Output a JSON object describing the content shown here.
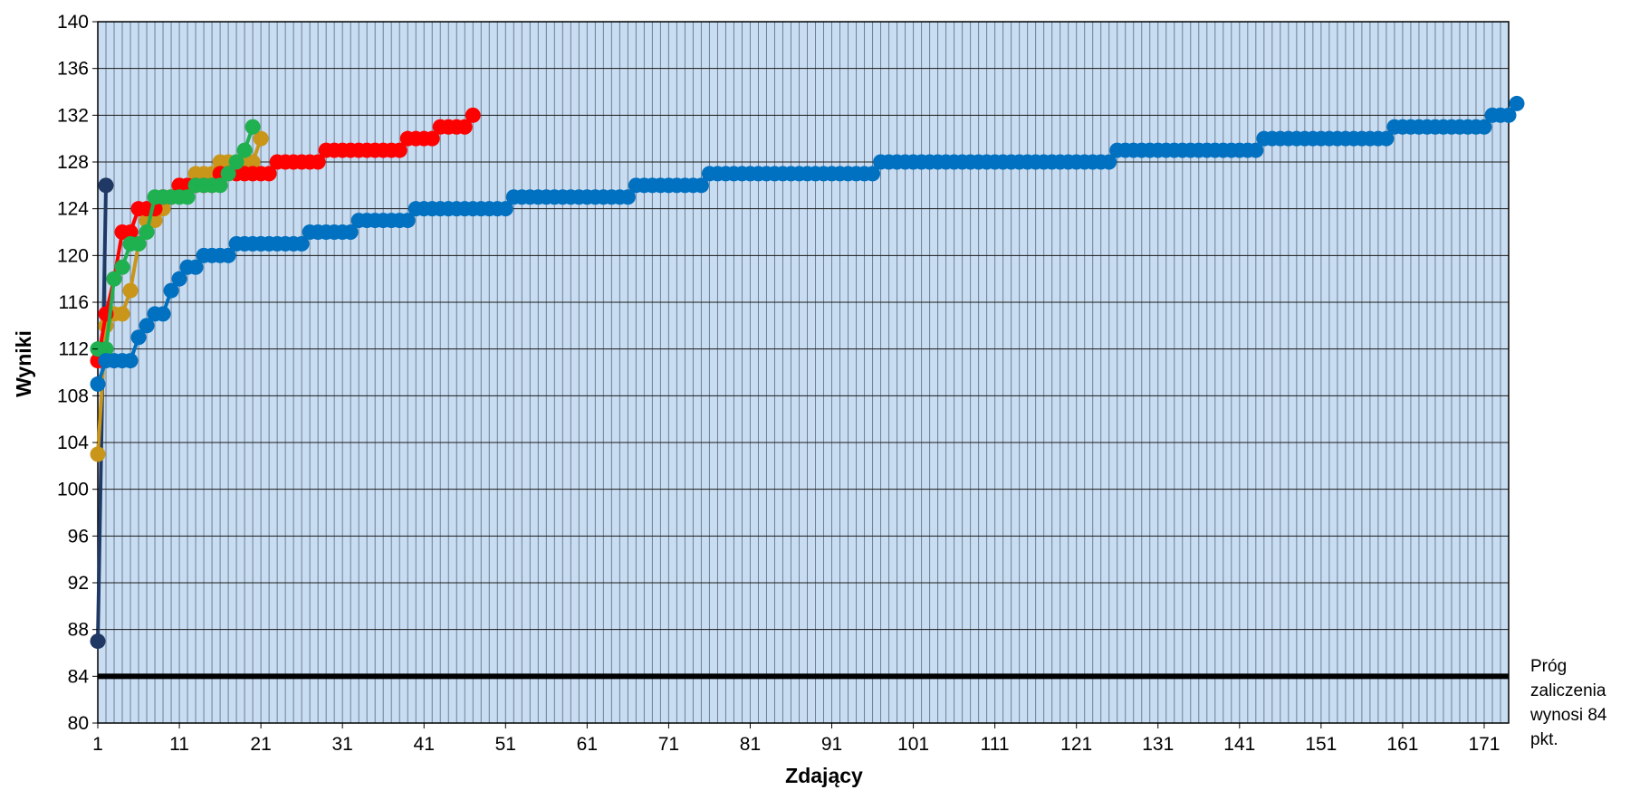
{
  "chart_data": {
    "type": "line",
    "title": "",
    "xlabel": "Zdający",
    "ylabel": "Wyniki",
    "xlim": [
      1,
      174
    ],
    "ylim": [
      80,
      140
    ],
    "yticks": [
      80,
      84,
      88,
      92,
      96,
      100,
      104,
      108,
      112,
      116,
      120,
      124,
      128,
      132,
      136,
      140
    ],
    "xticks": [
      1,
      11,
      21,
      31,
      41,
      51,
      61,
      71,
      81,
      91,
      101,
      111,
      121,
      131,
      141,
      151,
      161,
      171
    ],
    "grid": true,
    "legend": "none",
    "threshold": {
      "value": 84,
      "label_lines": [
        "Próg",
        "zaliczenia",
        "wynosi 84",
        "pkt."
      ],
      "color": "#000000"
    },
    "series": [
      {
        "color": "#1F3864",
        "values": [
          87,
          126
        ]
      },
      {
        "color": "#C9961A",
        "values": [
          103,
          114,
          115,
          115,
          117,
          121,
          123,
          123,
          124,
          125,
          126,
          126,
          127,
          127,
          127,
          128,
          128,
          128,
          128,
          128,
          130
        ]
      },
      {
        "color": "#FF0000",
        "values": [
          111,
          115,
          118,
          122,
          122,
          124,
          124,
          124,
          125,
          125,
          126,
          126,
          126,
          126,
          126,
          127,
          127,
          127,
          127,
          127,
          127,
          127,
          128,
          128,
          128,
          128,
          128,
          128,
          129,
          129,
          129,
          129,
          129,
          129,
          129,
          129,
          129,
          129,
          130,
          130,
          130,
          130,
          131,
          131,
          131,
          131,
          132
        ]
      },
      {
        "color": "#1FB050",
        "values": [
          112,
          112,
          118,
          119,
          121,
          121,
          122,
          125,
          125,
          125,
          125,
          125,
          126,
          126,
          126,
          126,
          127,
          128,
          129,
          131
        ]
      },
      {
        "color": "#0070C0",
        "runs": [
          [
            109,
            1
          ],
          [
            111,
            4
          ],
          [
            113,
            1
          ],
          [
            114,
            1
          ],
          [
            115,
            2
          ],
          [
            117,
            1
          ],
          [
            118,
            1
          ],
          [
            119,
            2
          ],
          [
            120,
            4
          ],
          [
            121,
            9
          ],
          [
            122,
            6
          ],
          [
            123,
            7
          ],
          [
            124,
            12
          ],
          [
            125,
            15
          ],
          [
            126,
            9
          ],
          [
            127,
            21
          ],
          [
            128,
            29
          ],
          [
            129,
            18
          ],
          [
            130,
            16
          ],
          [
            131,
            12
          ],
          [
            132,
            3
          ],
          [
            133,
            1
          ]
        ]
      }
    ]
  }
}
